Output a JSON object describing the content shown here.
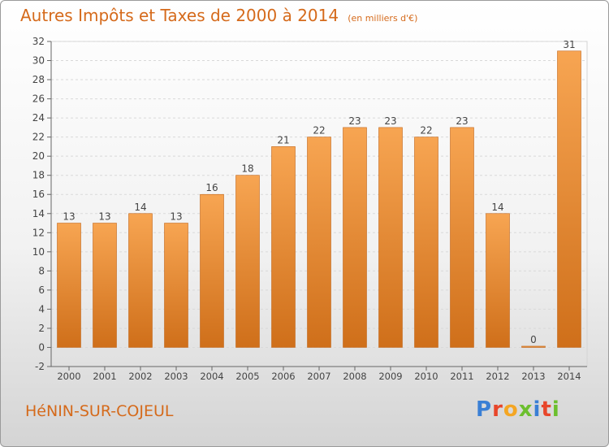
{
  "header": {
    "title": "Autres Impôts et Taxes de 2000 à 2014",
    "unit": "(en milliers d'€)"
  },
  "footer": {
    "city": "HéNIN-SUR-COJEUL",
    "brand": "Proxiti",
    "brand_colors": [
      "#3a7fd5",
      "#e8462a",
      "#f4a623",
      "#6cbf2e",
      "#3a7fd5",
      "#e8462a",
      "#6cbf2e"
    ]
  },
  "chart_data": {
    "type": "bar",
    "categories": [
      "2000",
      "2001",
      "2002",
      "2003",
      "2004",
      "2005",
      "2006",
      "2007",
      "2008",
      "2009",
      "2010",
      "2011",
      "2012",
      "2013",
      "2014"
    ],
    "values": [
      13,
      13,
      14,
      13,
      16,
      18,
      21,
      22,
      23,
      23,
      22,
      23,
      14,
      0,
      31
    ],
    "ylim": [
      -2,
      32
    ],
    "yticks": [
      -2,
      0,
      2,
      4,
      6,
      8,
      10,
      12,
      14,
      16,
      18,
      20,
      22,
      24,
      26,
      28,
      30,
      32
    ],
    "grid": true,
    "bar_color_light": "#f7a552",
    "bar_color_dark": "#cf6f1a"
  }
}
